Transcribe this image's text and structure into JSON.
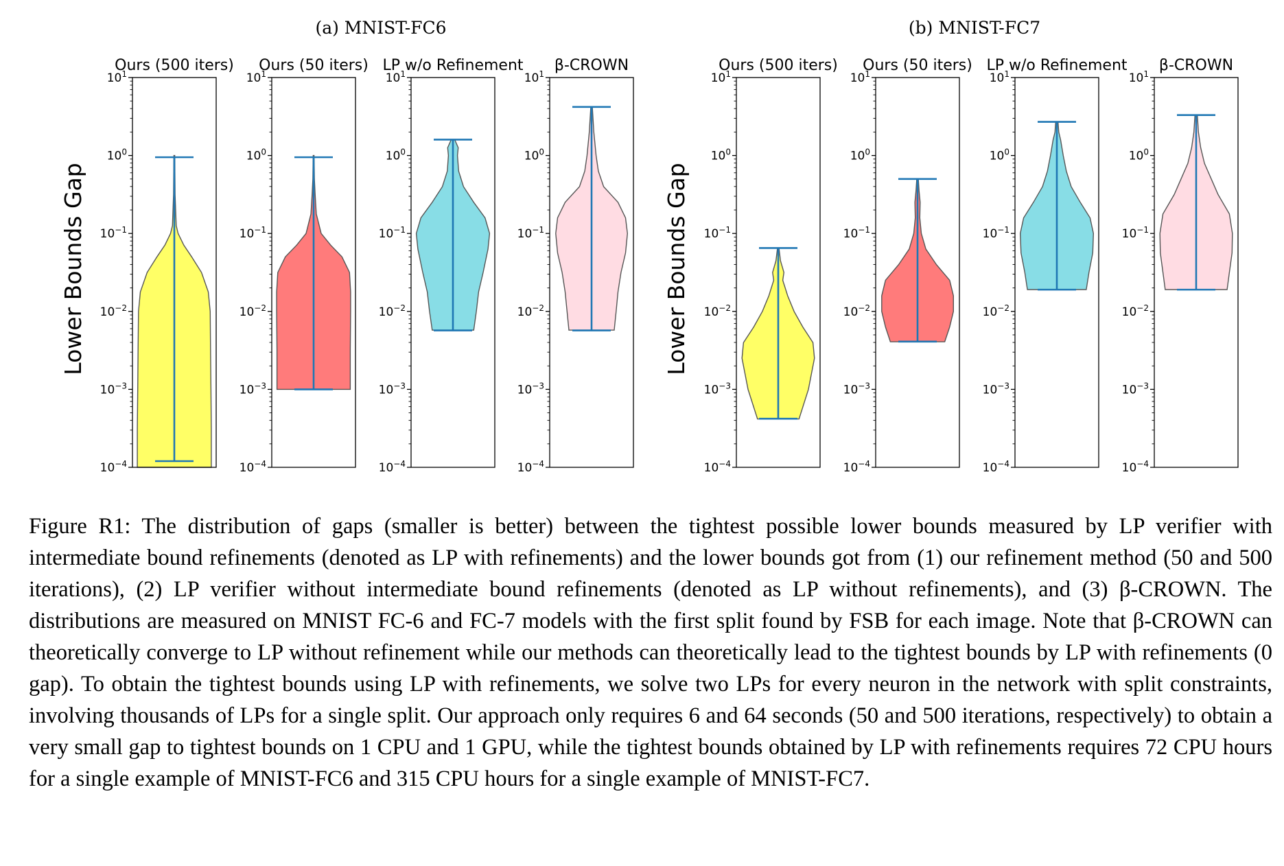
{
  "figure": {
    "groups": [
      {
        "title": "(a) MNIST-FC6",
        "ylabel": "Lower Bounds Gap"
      },
      {
        "title": "(b) MNIST-FC7",
        "ylabel": "Lower Bounds Gap"
      }
    ],
    "caption": "Figure R1: The distribution of gaps (smaller is better) between the tightest possible lower bounds measured by LP verifier with intermediate bound refinements (denoted as LP with refinements) and the lower bounds got from (1) our refinement method (50 and 500 iterations), (2) LP verifier without intermediate bound refinements (denoted as LP without refinements), and (3) β-CROWN. The distributions are measured on MNIST FC-6 and FC-7 models with the first split found by FSB for each image. Note that β-CROWN can theoretically converge to LP without refinement while our methods can theoretically lead to the tightest bounds by LP with refinements (0 gap). To obtain the tightest bounds using LP with refinements, we solve two LPs for every neuron in the network with split constraints, involving thousands of LPs for a single split. Our approach only requires 6 and 64 seconds (50 and 500 iterations, respectively) to obtain a very small gap to tightest bounds on 1 CPU and 1 GPU, while the tightest bounds obtained by LP with refinements requires 72 CPU hours for a single example of MNIST-FC6 and 315 CPU hours for a single example of MNIST-FC7."
  },
  "chart_data": [
    {
      "type": "violin",
      "group": "(a) MNIST-FC6",
      "ylabel": "Lower Bounds Gap",
      "yscale": "log",
      "ylim": [
        0.0001,
        10
      ],
      "yticks": [
        {
          "value": 10,
          "base": "10",
          "exp": "1"
        },
        {
          "value": 1,
          "base": "10",
          "exp": "0"
        },
        {
          "value": 0.1,
          "base": "10",
          "exp": "−1"
        },
        {
          "value": 0.01,
          "base": "10",
          "exp": "−2"
        },
        {
          "value": 0.001,
          "base": "10",
          "exp": "−3"
        },
        {
          "value": 0.0001,
          "base": "10",
          "exp": "−4"
        }
      ],
      "panels": [
        {
          "title": "Ours (500 iters)",
          "fill": "#ffff66",
          "min": 0.00012,
          "max": 0.95,
          "profile": [
            [
              -4.0,
              0.98
            ],
            [
              -3.5,
              0.98
            ],
            [
              -3.0,
              0.97
            ],
            [
              -2.5,
              0.96
            ],
            [
              -2.0,
              0.95
            ],
            [
              -1.75,
              0.9
            ],
            [
              -1.5,
              0.72
            ],
            [
              -1.3,
              0.46
            ],
            [
              -1.15,
              0.25
            ],
            [
              -1.0,
              0.1
            ],
            [
              -0.9,
              0.05
            ],
            [
              -0.5,
              0.02
            ],
            [
              0.0,
              0.01
            ]
          ]
        },
        {
          "title": "Ours (50 iters)",
          "fill": "#ff7b7b",
          "min": 0.001,
          "max": 0.95,
          "profile": [
            [
              -3.0,
              0.97
            ],
            [
              -2.5,
              0.97
            ],
            [
              -2.0,
              0.98
            ],
            [
              -1.75,
              0.98
            ],
            [
              -1.5,
              0.95
            ],
            [
              -1.3,
              0.75
            ],
            [
              -1.15,
              0.45
            ],
            [
              -1.0,
              0.2
            ],
            [
              -0.75,
              0.07
            ],
            [
              -0.5,
              0.04
            ],
            [
              -0.3,
              0.02
            ],
            [
              0.0,
              0.01
            ]
          ]
        },
        {
          "title": "LP w/o Refinement",
          "fill": "#88dde6",
          "min": 0.0057,
          "max": 1.6,
          "profile": [
            [
              -2.24,
              0.55
            ],
            [
              -2.0,
              0.62
            ],
            [
              -1.75,
              0.68
            ],
            [
              -1.5,
              0.8
            ],
            [
              -1.2,
              0.93
            ],
            [
              -1.0,
              0.97
            ],
            [
              -0.8,
              0.85
            ],
            [
              -0.6,
              0.55
            ],
            [
              -0.4,
              0.28
            ],
            [
              -0.2,
              0.15
            ],
            [
              0.0,
              0.12
            ],
            [
              0.1,
              0.14
            ],
            [
              0.2,
              0.05
            ]
          ]
        },
        {
          "title": "β-CROWN",
          "fill": "#ffdce3",
          "min": 0.0057,
          "max": 4.2,
          "profile": [
            [
              -2.24,
              0.6
            ],
            [
              -2.0,
              0.65
            ],
            [
              -1.75,
              0.7
            ],
            [
              -1.5,
              0.78
            ],
            [
              -1.25,
              0.9
            ],
            [
              -1.0,
              0.95
            ],
            [
              -0.8,
              0.9
            ],
            [
              -0.6,
              0.7
            ],
            [
              -0.4,
              0.32
            ],
            [
              -0.2,
              0.18
            ],
            [
              0.0,
              0.12
            ],
            [
              0.3,
              0.06
            ],
            [
              0.62,
              0.02
            ]
          ]
        }
      ]
    },
    {
      "type": "violin",
      "group": "(b) MNIST-FC7",
      "ylabel": "Lower Bounds Gap",
      "yscale": "log",
      "ylim": [
        0.0001,
        10
      ],
      "yticks": [
        {
          "value": 10,
          "base": "10",
          "exp": "1"
        },
        {
          "value": 1,
          "base": "10",
          "exp": "0"
        },
        {
          "value": 0.1,
          "base": "10",
          "exp": "−1"
        },
        {
          "value": 0.01,
          "base": "10",
          "exp": "−2"
        },
        {
          "value": 0.001,
          "base": "10",
          "exp": "−3"
        },
        {
          "value": 0.0001,
          "base": "10",
          "exp": "−4"
        }
      ],
      "panels": [
        {
          "title": "Ours (500 iters)",
          "fill": "#ffff66",
          "min": 0.00042,
          "max": 0.065,
          "profile": [
            [
              -3.38,
              0.55
            ],
            [
              -3.0,
              0.8
            ],
            [
              -2.6,
              0.96
            ],
            [
              -2.4,
              0.92
            ],
            [
              -2.2,
              0.65
            ],
            [
              -2.0,
              0.42
            ],
            [
              -1.8,
              0.25
            ],
            [
              -1.6,
              0.12
            ],
            [
              -1.5,
              0.15
            ],
            [
              -1.35,
              0.06
            ],
            [
              -1.19,
              0.02
            ]
          ]
        },
        {
          "title": "Ours (50 iters)",
          "fill": "#ff7b7b",
          "min": 0.0041,
          "max": 0.5,
          "profile": [
            [
              -2.39,
              0.72
            ],
            [
              -2.2,
              0.85
            ],
            [
              -2.0,
              0.95
            ],
            [
              -1.8,
              0.95
            ],
            [
              -1.6,
              0.85
            ],
            [
              -1.4,
              0.5
            ],
            [
              -1.2,
              0.22
            ],
            [
              -1.0,
              0.1
            ],
            [
              -0.8,
              0.06
            ],
            [
              -0.6,
              0.07
            ],
            [
              -0.45,
              0.04
            ],
            [
              -0.3,
              0.02
            ]
          ]
        },
        {
          "title": "LP w/o Refinement",
          "fill": "#88dde6",
          "min": 0.019,
          "max": 2.7,
          "profile": [
            [
              -1.72,
              0.78
            ],
            [
              -1.5,
              0.85
            ],
            [
              -1.25,
              0.95
            ],
            [
              -1.0,
              0.97
            ],
            [
              -0.8,
              0.88
            ],
            [
              -0.6,
              0.62
            ],
            [
              -0.4,
              0.38
            ],
            [
              -0.2,
              0.25
            ],
            [
              0.0,
              0.17
            ],
            [
              0.2,
              0.1
            ],
            [
              0.3,
              0.05
            ],
            [
              0.43,
              0.03
            ]
          ]
        },
        {
          "title": "β-CROWN",
          "fill": "#ffdce3",
          "min": 0.019,
          "max": 3.3,
          "profile": [
            [
              -1.72,
              0.82
            ],
            [
              -1.5,
              0.88
            ],
            [
              -1.25,
              0.95
            ],
            [
              -1.0,
              0.96
            ],
            [
              -0.75,
              0.88
            ],
            [
              -0.5,
              0.58
            ],
            [
              -0.3,
              0.4
            ],
            [
              -0.1,
              0.22
            ],
            [
              0.1,
              0.12
            ],
            [
              0.3,
              0.06
            ],
            [
              0.52,
              0.03
            ]
          ]
        }
      ]
    }
  ]
}
